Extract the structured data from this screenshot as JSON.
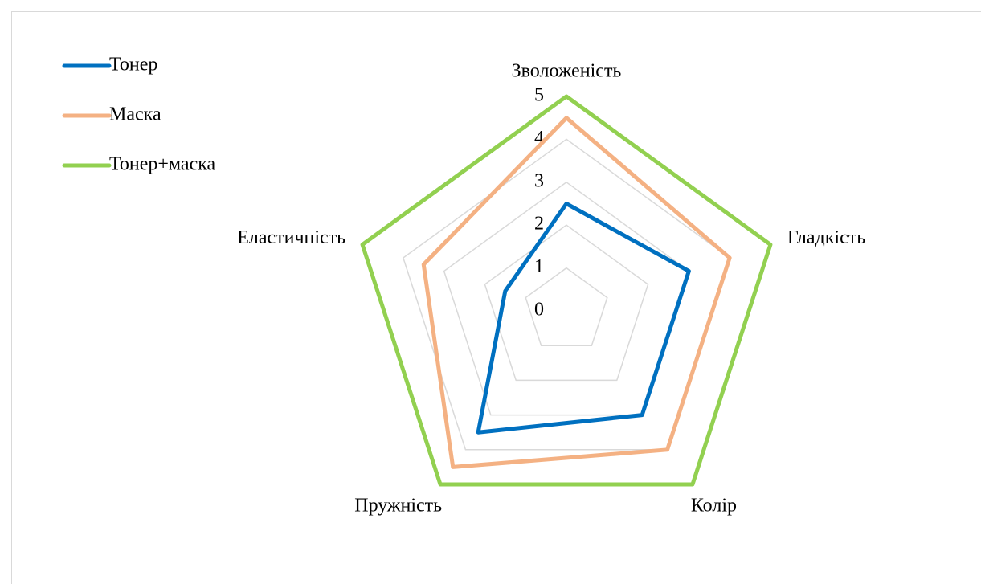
{
  "chart_data": {
    "type": "radar",
    "categories": [
      "Зволоженість",
      "Гладкість",
      "Колір",
      "Пружність",
      "Еластичність"
    ],
    "series": [
      {
        "name": "Тонер",
        "color": "#0070c0",
        "values": [
          2.5,
          3,
          3,
          3.5,
          1.5
        ]
      },
      {
        "name": "Маска",
        "color": "#f4b183",
        "values": [
          4.5,
          4,
          4,
          4.5,
          3.5
        ]
      },
      {
        "name": "Тонер+маска",
        "color": "#92d050",
        "values": [
          5,
          5,
          5,
          5,
          5
        ]
      }
    ],
    "rlim": [
      0,
      5
    ],
    "rticks": [
      0,
      1,
      2,
      3,
      4,
      5
    ],
    "grid": true,
    "legend": "top-left"
  }
}
